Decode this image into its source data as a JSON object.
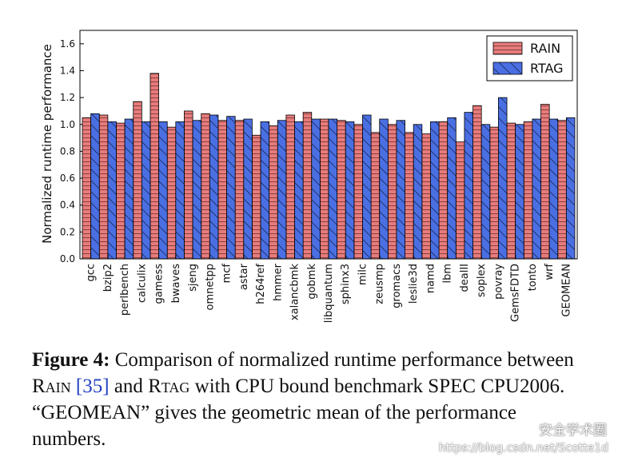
{
  "chart_data": {
    "type": "bar",
    "ylabel": "Normalized runtime performance",
    "ylim": [
      0,
      1.7
    ],
    "yticks": [
      "0.0",
      "0.2",
      "0.4",
      "0.6",
      "0.8",
      "1.0",
      "1.2",
      "1.4",
      "1.6"
    ],
    "grid": false,
    "legend_position": "top-right",
    "categories": [
      "gcc",
      "bzip2",
      "perlbench",
      "calculix",
      "gamess",
      "bwaves",
      "sjeng",
      "omnetpp",
      "mcf",
      "astar",
      "h264ref",
      "hmmer",
      "xalancbmk",
      "gobmk",
      "libquantum",
      "sphinx3",
      "milc",
      "zeusmp",
      "gromacs",
      "leslie3d",
      "namd",
      "lbm",
      "dealII",
      "soplex",
      "povray",
      "GemsFDTD",
      "tonto",
      "wrf",
      "GEOMEAN"
    ],
    "series": [
      {
        "name": "RAIN",
        "color": "#e87b7b",
        "pattern": "horizontal",
        "values": [
          1.05,
          1.07,
          1.01,
          1.17,
          1.38,
          0.98,
          1.1,
          1.08,
          1.03,
          1.03,
          0.92,
          0.99,
          1.07,
          1.09,
          1.04,
          1.03,
          1.0,
          0.94,
          1.0,
          0.94,
          0.93,
          1.02,
          0.87,
          1.14,
          0.98,
          1.01,
          1.02,
          1.15,
          1.03
        ]
      },
      {
        "name": "RTAG",
        "color": "#4a6fe3",
        "pattern": "diagonal",
        "values": [
          1.08,
          1.02,
          1.04,
          1.02,
          1.02,
          1.02,
          1.03,
          1.07,
          1.06,
          1.04,
          1.02,
          1.03,
          1.02,
          1.04,
          1.04,
          1.02,
          1.07,
          1.04,
          1.03,
          1.0,
          1.02,
          1.05,
          1.09,
          1.0,
          1.2,
          1.0,
          1.04,
          1.04,
          1.05
        ]
      }
    ]
  },
  "caption": {
    "label": "Figure 4:",
    "part1": " Comparison of normalized runtime performance between ",
    "rain_name": "Rain",
    "ref": "[35]",
    "part2": " and ",
    "rtag_name": "Rtag",
    "part3": " with CPU bound benchmark SPEC CPU2006. “GEOMEAN” gives the geometric mean of the performance numbers."
  },
  "watermark": {
    "wechat": "安全学术圈",
    "url": "https://blog.csdn.net/Scotte1d"
  }
}
